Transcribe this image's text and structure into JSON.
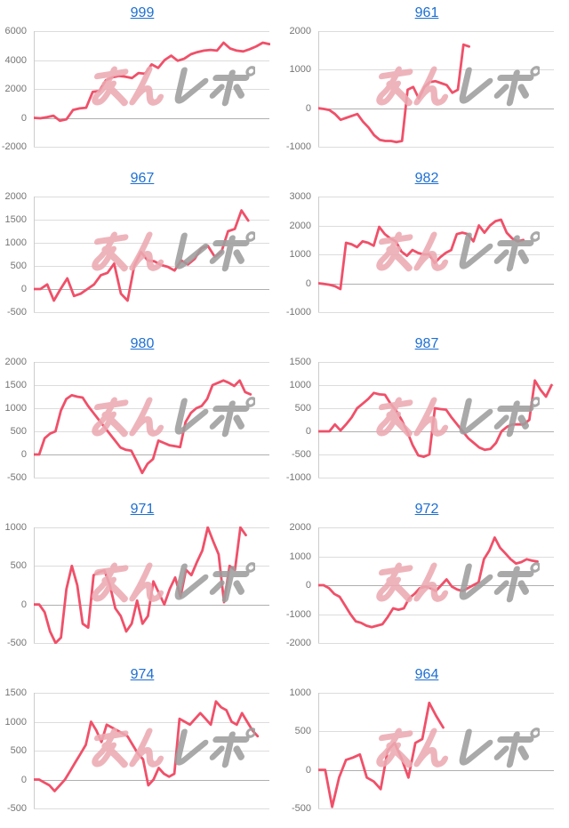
{
  "page": {
    "background": "#FFFFFF",
    "columns": 2
  },
  "theme": {
    "line_color": "#F05069",
    "grid_color": "#DCDCDC",
    "baseline_color": "#AFAFAF",
    "axis_line_color": "#CCCCCC",
    "axis_label_color": "#757575",
    "link_color": "#1D6FD2"
  },
  "watermark": {
    "pink_text": "みん",
    "gray_text": "レポ",
    "pink_color": "#ECAAB2",
    "gray_color": "#9E9E9E"
  },
  "chart_data": [
    {
      "type": "line",
      "title": "999",
      "xlabel": "",
      "ylabel": "",
      "grid": true,
      "legend": "none",
      "ylim": [
        -2000,
        6000
      ],
      "y_ticks": [
        6000,
        4000,
        2000,
        0,
        -2000
      ],
      "span": 1.0,
      "values": [
        0,
        -30,
        50,
        150,
        -200,
        -100,
        550,
        650,
        700,
        1800,
        1850,
        2600,
        2800,
        2900,
        2850,
        2750,
        3100,
        3050,
        3700,
        3450,
        4000,
        4300,
        3950,
        4100,
        4400,
        4550,
        4650,
        4700,
        4650,
        5200,
        4800,
        4650,
        4600,
        4750,
        4950,
        5200,
        5100
      ]
    },
    {
      "type": "line",
      "title": "961",
      "xlabel": "",
      "ylabel": "",
      "grid": true,
      "legend": "none",
      "ylim": [
        -1000,
        2000
      ],
      "y_ticks": [
        2000,
        1000,
        0,
        -1000
      ],
      "span": 0.64,
      "values": [
        0,
        -20,
        -50,
        -150,
        -300,
        -250,
        -200,
        -150,
        -350,
        -500,
        -700,
        -820,
        -850,
        -850,
        -880,
        -850,
        480,
        550,
        250,
        550,
        680,
        700,
        650,
        600,
        400,
        480,
        1650,
        1600
      ]
    },
    {
      "type": "line",
      "title": "967",
      "xlabel": "",
      "ylabel": "",
      "grid": true,
      "legend": "none",
      "ylim": [
        -500,
        2000
      ],
      "y_ticks": [
        2000,
        1500,
        1000,
        500,
        0,
        -500
      ],
      "span": 0.91,
      "values": [
        0,
        0,
        100,
        -250,
        0,
        230,
        -150,
        -100,
        0,
        100,
        300,
        350,
        550,
        -100,
        -250,
        500,
        800,
        620,
        600,
        520,
        480,
        400,
        620,
        530,
        650,
        880,
        930,
        700,
        800,
        1250,
        1300,
        1700,
        1480
      ]
    },
    {
      "type": "line",
      "title": "982",
      "xlabel": "",
      "ylabel": "",
      "grid": true,
      "legend": "none",
      "ylim": [
        -1000,
        3000
      ],
      "y_ticks": [
        3000,
        2000,
        1000,
        0,
        -1000
      ],
      "span": 0.87,
      "values": [
        0,
        -20,
        -50,
        -100,
        -200,
        1400,
        1350,
        1250,
        1450,
        1400,
        1300,
        1950,
        1700,
        1550,
        1450,
        1100,
        950,
        1150,
        1050,
        1000,
        1000,
        700,
        900,
        1050,
        1150,
        1700,
        1750,
        1700,
        1450,
        2000,
        1750,
        2000,
        2150,
        2200,
        1750,
        1550,
        1450,
        1500
      ]
    },
    {
      "type": "line",
      "title": "980",
      "xlabel": "",
      "ylabel": "",
      "grid": true,
      "legend": "none",
      "ylim": [
        -500,
        2000
      ],
      "y_ticks": [
        2000,
        1500,
        1000,
        500,
        0,
        -500
      ],
      "span": 0.92,
      "values": [
        0,
        0,
        350,
        450,
        500,
        950,
        1200,
        1280,
        1250,
        1230,
        1050,
        900,
        750,
        600,
        450,
        300,
        150,
        100,
        80,
        -150,
        -400,
        -200,
        -100,
        300,
        250,
        200,
        180,
        160,
        700,
        900,
        1000,
        1050,
        1200,
        1500,
        1550,
        1600,
        1550,
        1480,
        1600,
        1350,
        1300
      ]
    },
    {
      "type": "line",
      "title": "987",
      "xlabel": "",
      "ylabel": "",
      "grid": true,
      "legend": "none",
      "ylim": [
        -1000,
        1500
      ],
      "y_ticks": [
        1500,
        1000,
        500,
        0,
        -500,
        -1000
      ],
      "span": 0.99,
      "values": [
        0,
        0,
        0,
        150,
        20,
        150,
        300,
        500,
        600,
        700,
        830,
        800,
        790,
        600,
        450,
        250,
        0,
        -300,
        -520,
        -550,
        -500,
        500,
        480,
        470,
        300,
        150,
        0,
        -150,
        -250,
        -350,
        -400,
        -380,
        -250,
        0,
        100,
        150,
        150,
        150,
        250,
        1100,
        900,
        750,
        1000
      ]
    },
    {
      "type": "line",
      "title": "971",
      "xlabel": "",
      "ylabel": "",
      "grid": true,
      "legend": "none",
      "ylim": [
        -500,
        1000
      ],
      "y_ticks": [
        1000,
        500,
        0,
        -500
      ],
      "span": 0.9,
      "values": [
        0,
        0,
        -100,
        -350,
        -500,
        -430,
        200,
        500,
        250,
        -250,
        -300,
        380,
        420,
        440,
        250,
        -50,
        -150,
        -350,
        -250,
        50,
        -250,
        -150,
        300,
        150,
        0,
        200,
        350,
        100,
        450,
        380,
        550,
        700,
        1000,
        820,
        650,
        30,
        500,
        450,
        1000,
        900
      ]
    },
    {
      "type": "line",
      "title": "972",
      "xlabel": "",
      "ylabel": "",
      "grid": true,
      "legend": "none",
      "ylim": [
        -2000,
        2000
      ],
      "y_ticks": [
        2000,
        1000,
        0,
        -1000,
        -2000
      ],
      "span": 0.93,
      "values": [
        0,
        0,
        -100,
        -300,
        -400,
        -700,
        -1000,
        -1250,
        -1300,
        -1400,
        -1450,
        -1400,
        -1350,
        -1100,
        -800,
        -850,
        -800,
        -450,
        -300,
        -100,
        -50,
        -100,
        -200,
        0,
        200,
        -50,
        -150,
        -200,
        -100,
        0,
        100,
        900,
        1200,
        1650,
        1300,
        1100,
        900,
        750,
        800,
        900,
        850,
        820
      ]
    },
    {
      "type": "line",
      "title": "974",
      "xlabel": "",
      "ylabel": "",
      "grid": true,
      "legend": "none",
      "ylim": [
        -500,
        1500
      ],
      "y_ticks": [
        1500,
        1000,
        500,
        0,
        -500
      ],
      "span": 0.95,
      "values": [
        0,
        0,
        -50,
        -100,
        -200,
        -100,
        0,
        150,
        300,
        450,
        600,
        1000,
        850,
        650,
        950,
        900,
        850,
        800,
        750,
        600,
        450,
        350,
        -100,
        0,
        200,
        100,
        50,
        100,
        1050,
        1000,
        950,
        1050,
        1150,
        1050,
        950,
        1350,
        1250,
        1200,
        1000,
        950,
        1150,
        1000,
        850,
        750
      ]
    },
    {
      "type": "line",
      "title": "964",
      "xlabel": "",
      "ylabel": "",
      "grid": true,
      "legend": "none",
      "ylim": [
        -500,
        1000
      ],
      "y_ticks": [
        1000,
        500,
        0,
        -500
      ],
      "span": 0.53,
      "values": [
        0,
        0,
        -480,
        -100,
        130,
        160,
        200,
        -100,
        -150,
        -250,
        250,
        350,
        150,
        -100,
        350,
        400,
        870,
        700,
        550
      ]
    }
  ]
}
